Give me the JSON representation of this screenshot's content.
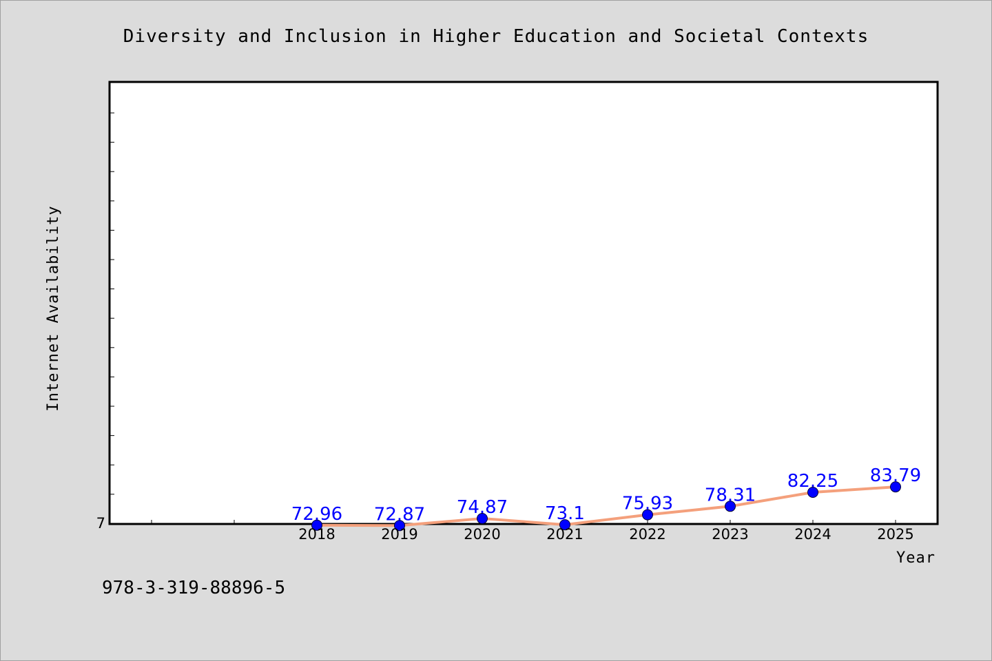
{
  "chart_data": {
    "type": "line",
    "title": "Diversity and Inclusion in Higher Education and Societal Contexts",
    "xlabel": "Year",
    "ylabel": "Internet Availability",
    "x": [
      "2018",
      "2019",
      "2020",
      "2021",
      "2022",
      "2023",
      "2024",
      "2025"
    ],
    "y": [
      72.96,
      72.87,
      74.87,
      73.1,
      75.93,
      78.31,
      82.25,
      83.79
    ],
    "data_labels": [
      "72.96",
      "72.87",
      "74.87",
      "73.1",
      "75.93",
      "78.31",
      "82.25",
      "83.79"
    ],
    "y_tick_labels": [
      "7"
    ],
    "ylim": [
      70,
      85
    ],
    "grid": false,
    "line_color": "#f4a07c",
    "marker_color": "#0000ff",
    "label_color": "#0000ff"
  },
  "footnote": "978-3-319-88896-5"
}
